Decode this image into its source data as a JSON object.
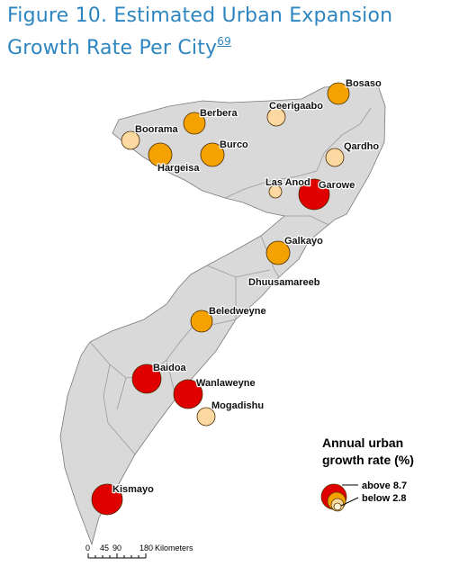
{
  "title": {
    "text": "Figure 10. Estimated Urban Expansion Growth Rate Per City",
    "footnote": "69"
  },
  "colors": {
    "land": "#d9d9d9",
    "border": "#ffffff",
    "outline": "#7a7a7a",
    "high": "#e00000",
    "medium": "#f5a200",
    "low": "#fbd9a0"
  },
  "cities": [
    {
      "name": "Bosaso",
      "category": "medium"
    },
    {
      "name": "Ceerigaabo",
      "category": "low"
    },
    {
      "name": "Berbera",
      "category": "medium"
    },
    {
      "name": "Boorama",
      "category": "low"
    },
    {
      "name": "Hargeisa",
      "category": "medium"
    },
    {
      "name": "Burco",
      "category": "medium"
    },
    {
      "name": "Qardho",
      "category": "low"
    },
    {
      "name": "Las Anod",
      "category": "low"
    },
    {
      "name": "Garowe",
      "category": "high"
    },
    {
      "name": "Galkayo",
      "category": "medium"
    },
    {
      "name": "Dhuusamareeb",
      "category": null
    },
    {
      "name": "Beledweyne",
      "category": "medium"
    },
    {
      "name": "Baidoa",
      "category": "high"
    },
    {
      "name": "Wanlaweyne",
      "category": "high"
    },
    {
      "name": "Mogadishu",
      "category": "low"
    },
    {
      "name": "Kismayo",
      "category": "high"
    }
  ],
  "legend": {
    "title_line1": "Annual urban",
    "title_line2": "growth rate (%)",
    "above_label": "above 8.7",
    "below_label": "below 2.8"
  },
  "scale": {
    "ticks": [
      "0",
      "45",
      "90",
      "180"
    ],
    "unit": "Kilometers"
  }
}
